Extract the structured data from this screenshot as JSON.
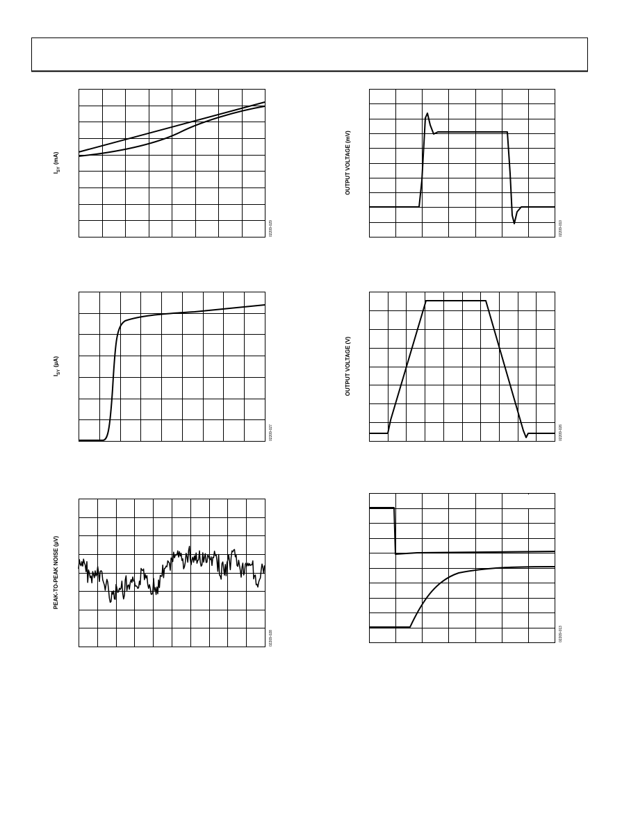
{
  "figures": [
    {
      "y_label": {
        "symbol": "I",
        "subscript": "SY",
        "unit": "(mA)"
      },
      "code": "02209-029"
    },
    {
      "y_label": "OUTPUT VOLTAGE (mV)",
      "code": "02209-010"
    },
    {
      "y_label": {
        "symbol": "I",
        "subscript": "SY",
        "unit": "(µA)"
      },
      "code": "02209-027"
    },
    {
      "y_label": "OUTPUT VOLTAGE (V)",
      "code": "02209-026"
    },
    {
      "y_label": "PEAK-TO-PEAK NOISE (µV)",
      "code": "02209-028"
    },
    {
      "code": "02209-013"
    }
  ]
}
